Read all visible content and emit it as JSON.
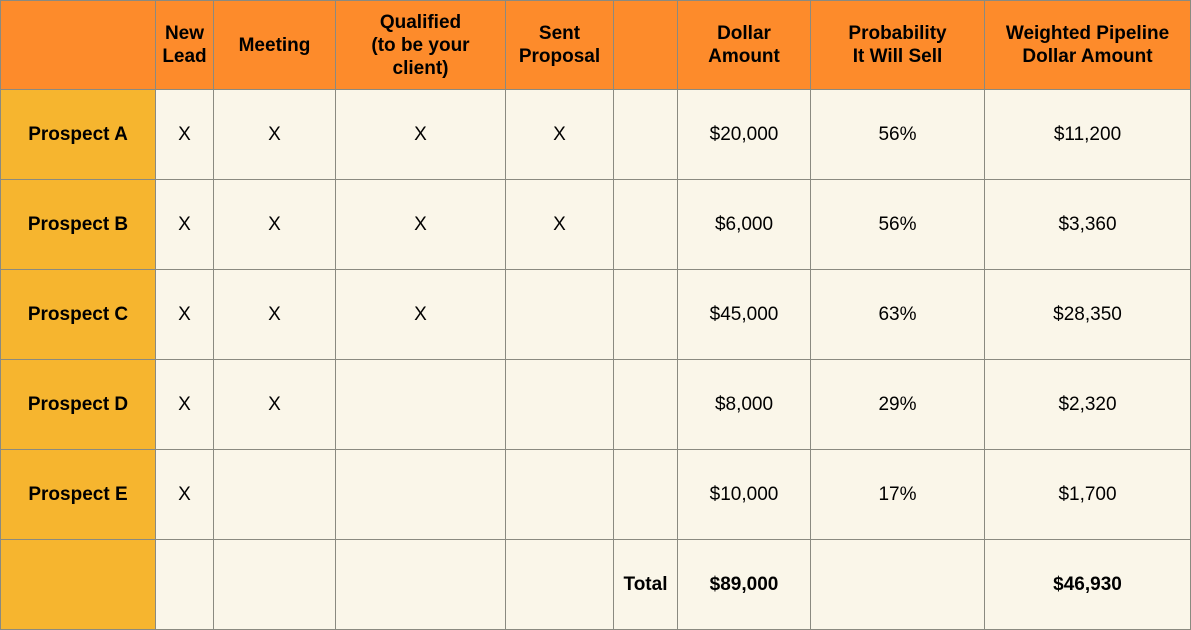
{
  "chart_data": {
    "type": "table",
    "columns": [
      "",
      "New Lead",
      "Meeting",
      "Qualified (to be your client)",
      "Sent Proposal",
      "",
      "Dollar Amount",
      "Probability It Will Sell",
      "Weighted Pipeline Dollar Amount"
    ],
    "header_lines": [
      [],
      [
        "New",
        "Lead"
      ],
      [
        "Meeting"
      ],
      [
        "Qualified",
        "(to be your",
        "client)"
      ],
      [
        "Sent",
        "Proposal"
      ],
      [],
      [
        "Dollar",
        "Amount"
      ],
      [
        "Probability",
        "It Will Sell"
      ],
      [
        "Weighted Pipeline",
        "Dollar Amount"
      ]
    ],
    "rows": [
      [
        "Prospect A",
        "X",
        "X",
        "X",
        "X",
        "",
        "$20,000",
        "56%",
        "$11,200"
      ],
      [
        "Prospect B",
        "X",
        "X",
        "X",
        "X",
        "",
        "$6,000",
        "56%",
        "$3,360"
      ],
      [
        "Prospect C",
        "X",
        "X",
        "X",
        "",
        "",
        "$45,000",
        "63%",
        "$28,350"
      ],
      [
        "Prospect D",
        "X",
        "X",
        "",
        "",
        "",
        "$8,000",
        "29%",
        "$2,320"
      ],
      [
        "Prospect E",
        "X",
        "",
        "",
        "",
        "",
        "$10,000",
        "17%",
        "$1,700"
      ]
    ],
    "total_row": [
      "",
      "",
      "",
      "",
      "",
      "Total",
      "$89,000",
      "",
      "$46,930"
    ]
  },
  "colors": {
    "header": "#fd8b2b",
    "row_label": "#f6b52f",
    "cell": "#faf6e9",
    "border": "#8a8a80"
  }
}
